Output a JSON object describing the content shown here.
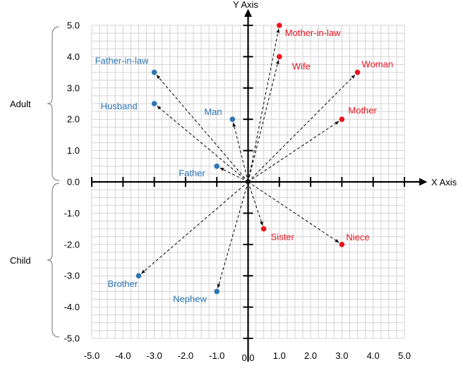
{
  "chart_data": {
    "type": "scatter",
    "xlabel": "X Axis",
    "ylabel": "Y Axis",
    "xlim": [
      -5,
      5
    ],
    "ylim": [
      -5,
      5
    ],
    "grid": true,
    "grid_minor_step": 0.25,
    "grid_major_step": 1,
    "x_ticks": [
      "-5.0",
      "-4.0",
      "-3.0",
      "-2.0",
      "-1.0",
      "0.0",
      "1.0",
      "2.0",
      "3.0",
      "4.0",
      "5.0"
    ],
    "y_ticks": [
      "-5.0",
      "-4.0",
      "-3.0",
      "-2.0",
      "-1.0",
      "0.0",
      "1.0",
      "2.0",
      "3.0",
      "4.0",
      "5.0"
    ],
    "y_groups": [
      {
        "label": "Adult",
        "range": [
          0,
          5
        ]
      },
      {
        "label": "Child",
        "range": [
          -5,
          0
        ]
      }
    ],
    "vectors_from_origin": true,
    "colors": {
      "male": "#2e74b5",
      "female": "#e8141f",
      "axis": "#000000",
      "grid": "#d4d4d4"
    },
    "series": [
      {
        "points": [
          {
            "label": "Father-in-law",
            "x": -3.0,
            "y": 3.5
          },
          {
            "label": "Husband",
            "x": -3.0,
            "y": 2.5
          },
          {
            "label": "Man",
            "x": -0.5,
            "y": 2.0
          },
          {
            "label": "Father",
            "x": -1.0,
            "y": 0.5
          },
          {
            "label": "Brother",
            "x": -3.5,
            "y": -3.0
          },
          {
            "label": "Nephew",
            "x": -1.0,
            "y": -3.5
          }
        ]
      },
      {
        "points": [
          {
            "label": "Mother-in-law",
            "x": 1.0,
            "y": 5.0
          },
          {
            "label": "Wife",
            "x": 1.0,
            "y": 4.0
          },
          {
            "label": "Woman",
            "x": 3.5,
            "y": 3.5
          },
          {
            "label": "Mother",
            "x": 3.0,
            "y": 2.0
          },
          {
            "label": "Sister",
            "x": 0.5,
            "y": -1.5
          },
          {
            "label": "Niece",
            "x": 3.0,
            "y": -2.0
          }
        ]
      }
    ]
  }
}
